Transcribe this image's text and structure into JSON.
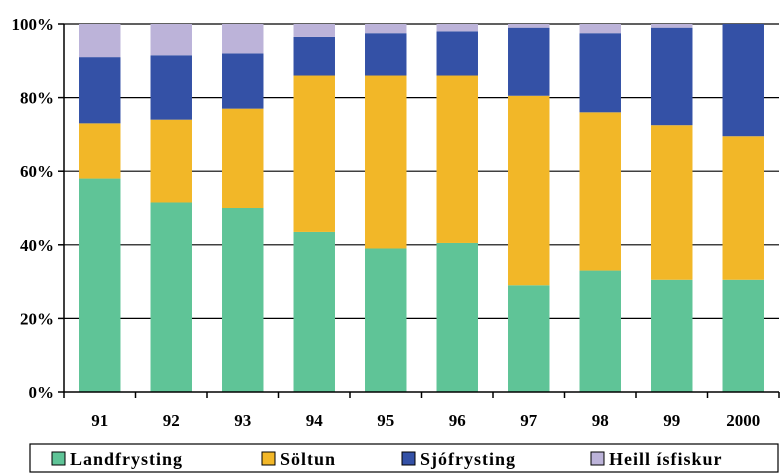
{
  "chart_data": {
    "type": "bar",
    "stacked": true,
    "categories": [
      "91",
      "92",
      "93",
      "94",
      "95",
      "96",
      "97",
      "98",
      "99",
      "2000"
    ],
    "series": [
      {
        "name": "Landfrysting",
        "color": "#5fc497",
        "values": [
          58,
          51.5,
          50,
          43.5,
          39,
          40.5,
          29,
          33,
          30.5,
          30.5
        ]
      },
      {
        "name": "Söltun",
        "color": "#f2b728",
        "values": [
          15,
          22.5,
          27,
          42.5,
          47,
          45.5,
          51.5,
          43,
          42,
          39
        ]
      },
      {
        "name": "Sjófrysting",
        "color": "#3451a6",
        "values": [
          18,
          17.5,
          15,
          10.5,
          11.5,
          12,
          18.5,
          21.5,
          26.5,
          30.5
        ]
      },
      {
        "name": "Heill ísfiskur",
        "color": "#bcb3d9",
        "values": [
          9,
          8.5,
          8,
          3.5,
          2.5,
          2,
          1,
          2.5,
          1,
          0
        ]
      }
    ],
    "yticks": [
      "0%",
      "20%",
      "40%",
      "60%",
      "80%",
      "100%"
    ],
    "ylim": [
      0,
      100
    ],
    "grid": true,
    "legend": "bottom",
    "title": "",
    "xlabel": "",
    "ylabel": ""
  }
}
